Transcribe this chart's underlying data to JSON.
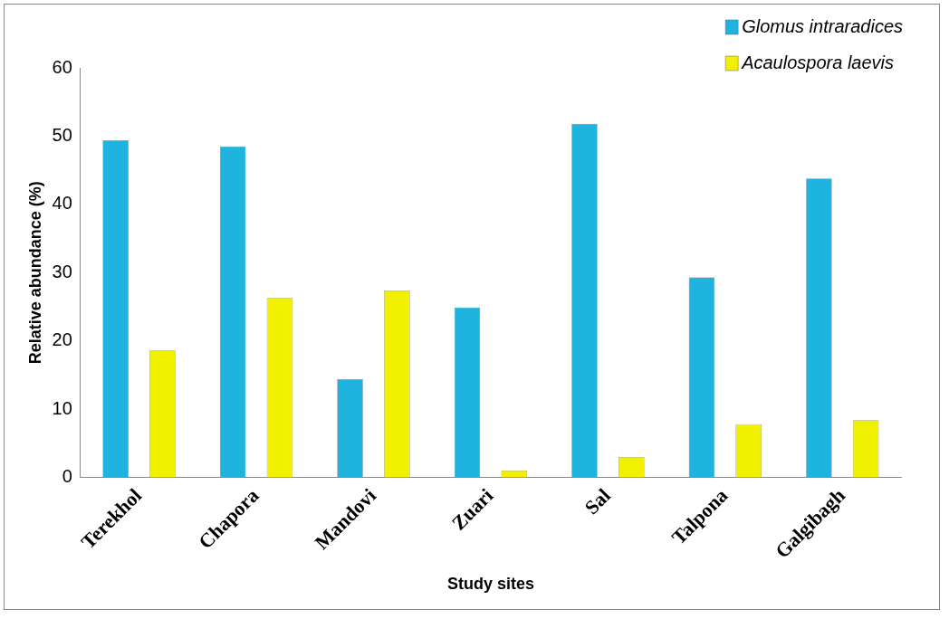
{
  "chart_data": {
    "type": "bar",
    "xlabel": "Study sites",
    "ylabel": "Relative abundance (%)",
    "categories": [
      "Terekhol",
      "Chapora",
      "Mandovi",
      "Zuari",
      "Sal",
      "Talpona",
      "Galgibagh"
    ],
    "series": [
      {
        "name": "Glomus intraradices",
        "color": "#1fb4e0",
        "values": [
          49.4,
          48.5,
          14.4,
          24.9,
          51.8,
          29.3,
          43.8
        ]
      },
      {
        "name": "Acaulospora laevis",
        "color": "#f0f000",
        "values": [
          18.6,
          26.3,
          27.4,
          1.0,
          3.0,
          7.8,
          8.4
        ]
      }
    ],
    "ylim": [
      0,
      60
    ],
    "yticks": [
      0,
      10,
      20,
      30,
      40,
      50,
      60
    ],
    "grid": false,
    "legend": "top right"
  }
}
